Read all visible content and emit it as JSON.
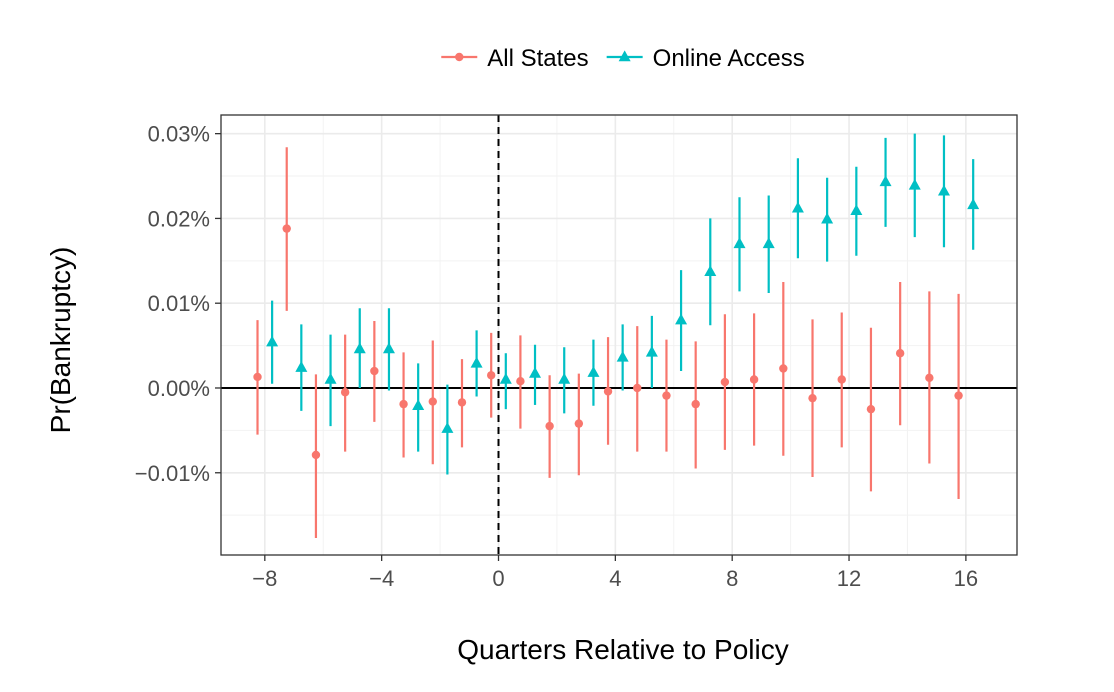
{
  "chart_data": {
    "type": "scatter",
    "title": "",
    "xlabel": "Quarters Relative to Policy",
    "ylabel": "Pr(Bankruptcy)",
    "xlim": [
      -9.5,
      17.75
    ],
    "ylim": [
      -0.0197,
      0.0322
    ],
    "xticks": [
      -8,
      -4,
      0,
      4,
      8,
      12,
      16
    ],
    "xtick_labels": [
      "−8",
      "−4",
      "0",
      "4",
      "8",
      "12",
      "16"
    ],
    "yticks": [
      -0.01,
      0.0,
      0.01,
      0.02,
      0.03
    ],
    "ytick_labels": [
      "−0.01%",
      "0.00%",
      "0.01%",
      "0.02%",
      "0.03%"
    ],
    "grid": true,
    "legend_position": "top",
    "reference_lines": {
      "horizontal_solid_at_y": 0,
      "vertical_dashed_at_x": 0
    },
    "series": [
      {
        "name": "All States",
        "color": "#F8766D",
        "marker": "circle",
        "points": [
          {
            "x": -8.25,
            "y": 0.0013,
            "lo": -0.0055,
            "hi": 0.008
          },
          {
            "x": -7.25,
            "y": 0.0188,
            "lo": 0.0091,
            "hi": 0.0284
          },
          {
            "x": -6.25,
            "y": -0.0079,
            "lo": -0.0177,
            "hi": 0.0016
          },
          {
            "x": -5.25,
            "y": -0.0005,
            "lo": -0.0075,
            "hi": 0.0063
          },
          {
            "x": -4.25,
            "y": 0.002,
            "lo": -0.004,
            "hi": 0.0079
          },
          {
            "x": -3.25,
            "y": -0.0019,
            "lo": -0.0082,
            "hi": 0.0042
          },
          {
            "x": -2.25,
            "y": -0.0016,
            "lo": -0.009,
            "hi": 0.0056
          },
          {
            "x": -1.25,
            "y": -0.0017,
            "lo": -0.007,
            "hi": 0.0034
          },
          {
            "x": -0.25,
            "y": 0.0015,
            "lo": -0.0035,
            "hi": 0.0065
          },
          {
            "x": 0.75,
            "y": 0.0008,
            "lo": -0.0048,
            "hi": 0.0062
          },
          {
            "x": 1.75,
            "y": -0.0045,
            "lo": -0.0106,
            "hi": 0.0015
          },
          {
            "x": 2.75,
            "y": -0.0042,
            "lo": -0.0103,
            "hi": 0.0017
          },
          {
            "x": 3.75,
            "y": -0.0004,
            "lo": -0.0067,
            "hi": 0.006
          },
          {
            "x": 4.75,
            "y": 0.0,
            "lo": -0.0075,
            "hi": 0.0073
          },
          {
            "x": 5.75,
            "y": -0.0009,
            "lo": -0.0075,
            "hi": 0.0057
          },
          {
            "x": 6.75,
            "y": -0.0019,
            "lo": -0.0095,
            "hi": 0.0055
          },
          {
            "x": 7.75,
            "y": 0.0007,
            "lo": -0.0073,
            "hi": 0.0087
          },
          {
            "x": 8.75,
            "y": 0.001,
            "lo": -0.0068,
            "hi": 0.0088
          },
          {
            "x": 9.75,
            "y": 0.0023,
            "lo": -0.008,
            "hi": 0.0125
          },
          {
            "x": 10.75,
            "y": -0.0012,
            "lo": -0.0105,
            "hi": 0.0081
          },
          {
            "x": 11.75,
            "y": 0.001,
            "lo": -0.007,
            "hi": 0.0089
          },
          {
            "x": 12.75,
            "y": -0.0025,
            "lo": -0.0122,
            "hi": 0.0071
          },
          {
            "x": 13.75,
            "y": 0.0041,
            "lo": -0.0044,
            "hi": 0.0125
          },
          {
            "x": 14.75,
            "y": 0.0012,
            "lo": -0.0089,
            "hi": 0.0114
          },
          {
            "x": 15.75,
            "y": -0.0009,
            "lo": -0.0131,
            "hi": 0.0111
          }
        ]
      },
      {
        "name": "Online Access",
        "color": "#00BFC4",
        "marker": "triangle",
        "points": [
          {
            "x": -7.75,
            "y": 0.0054,
            "lo": 0.0005,
            "hi": 0.0103
          },
          {
            "x": -6.75,
            "y": 0.0024,
            "lo": -0.0027,
            "hi": 0.0075
          },
          {
            "x": -5.75,
            "y": 0.001,
            "lo": -0.0045,
            "hi": 0.0063
          },
          {
            "x": -4.75,
            "y": 0.0046,
            "lo": 0.0,
            "hi": 0.0094
          },
          {
            "x": -3.75,
            "y": 0.0046,
            "lo": -0.0003,
            "hi": 0.0094
          },
          {
            "x": -2.75,
            "y": -0.0021,
            "lo": -0.0075,
            "hi": 0.0029
          },
          {
            "x": -1.75,
            "y": -0.0048,
            "lo": -0.0102,
            "hi": 0.0004
          },
          {
            "x": -0.75,
            "y": 0.0029,
            "lo": -0.001,
            "hi": 0.0068
          },
          {
            "x": 0.25,
            "y": 0.001,
            "lo": -0.0025,
            "hi": 0.0041
          },
          {
            "x": 1.25,
            "y": 0.0017,
            "lo": -0.002,
            "hi": 0.0051
          },
          {
            "x": 2.25,
            "y": 0.001,
            "lo": -0.003,
            "hi": 0.0048
          },
          {
            "x": 3.25,
            "y": 0.0018,
            "lo": -0.0021,
            "hi": 0.0057
          },
          {
            "x": 4.25,
            "y": 0.0036,
            "lo": -0.0003,
            "hi": 0.0075
          },
          {
            "x": 5.25,
            "y": 0.0042,
            "lo": 0.0,
            "hi": 0.0085
          },
          {
            "x": 6.25,
            "y": 0.008,
            "lo": 0.002,
            "hi": 0.0139
          },
          {
            "x": 7.25,
            "y": 0.0137,
            "lo": 0.0074,
            "hi": 0.02
          },
          {
            "x": 8.25,
            "y": 0.017,
            "lo": 0.0114,
            "hi": 0.0225
          },
          {
            "x": 9.25,
            "y": 0.017,
            "lo": 0.0112,
            "hi": 0.0227
          },
          {
            "x": 10.25,
            "y": 0.0212,
            "lo": 0.0153,
            "hi": 0.0271
          },
          {
            "x": 11.25,
            "y": 0.0199,
            "lo": 0.0149,
            "hi": 0.0248
          },
          {
            "x": 12.25,
            "y": 0.0209,
            "lo": 0.0156,
            "hi": 0.0261
          },
          {
            "x": 13.25,
            "y": 0.0243,
            "lo": 0.019,
            "hi": 0.0295
          },
          {
            "x": 14.25,
            "y": 0.0239,
            "lo": 0.0178,
            "hi": 0.03
          },
          {
            "x": 15.25,
            "y": 0.0232,
            "lo": 0.0166,
            "hi": 0.0298
          },
          {
            "x": 16.25,
            "y": 0.0216,
            "lo": 0.0163,
            "hi": 0.027
          }
        ]
      }
    ]
  }
}
